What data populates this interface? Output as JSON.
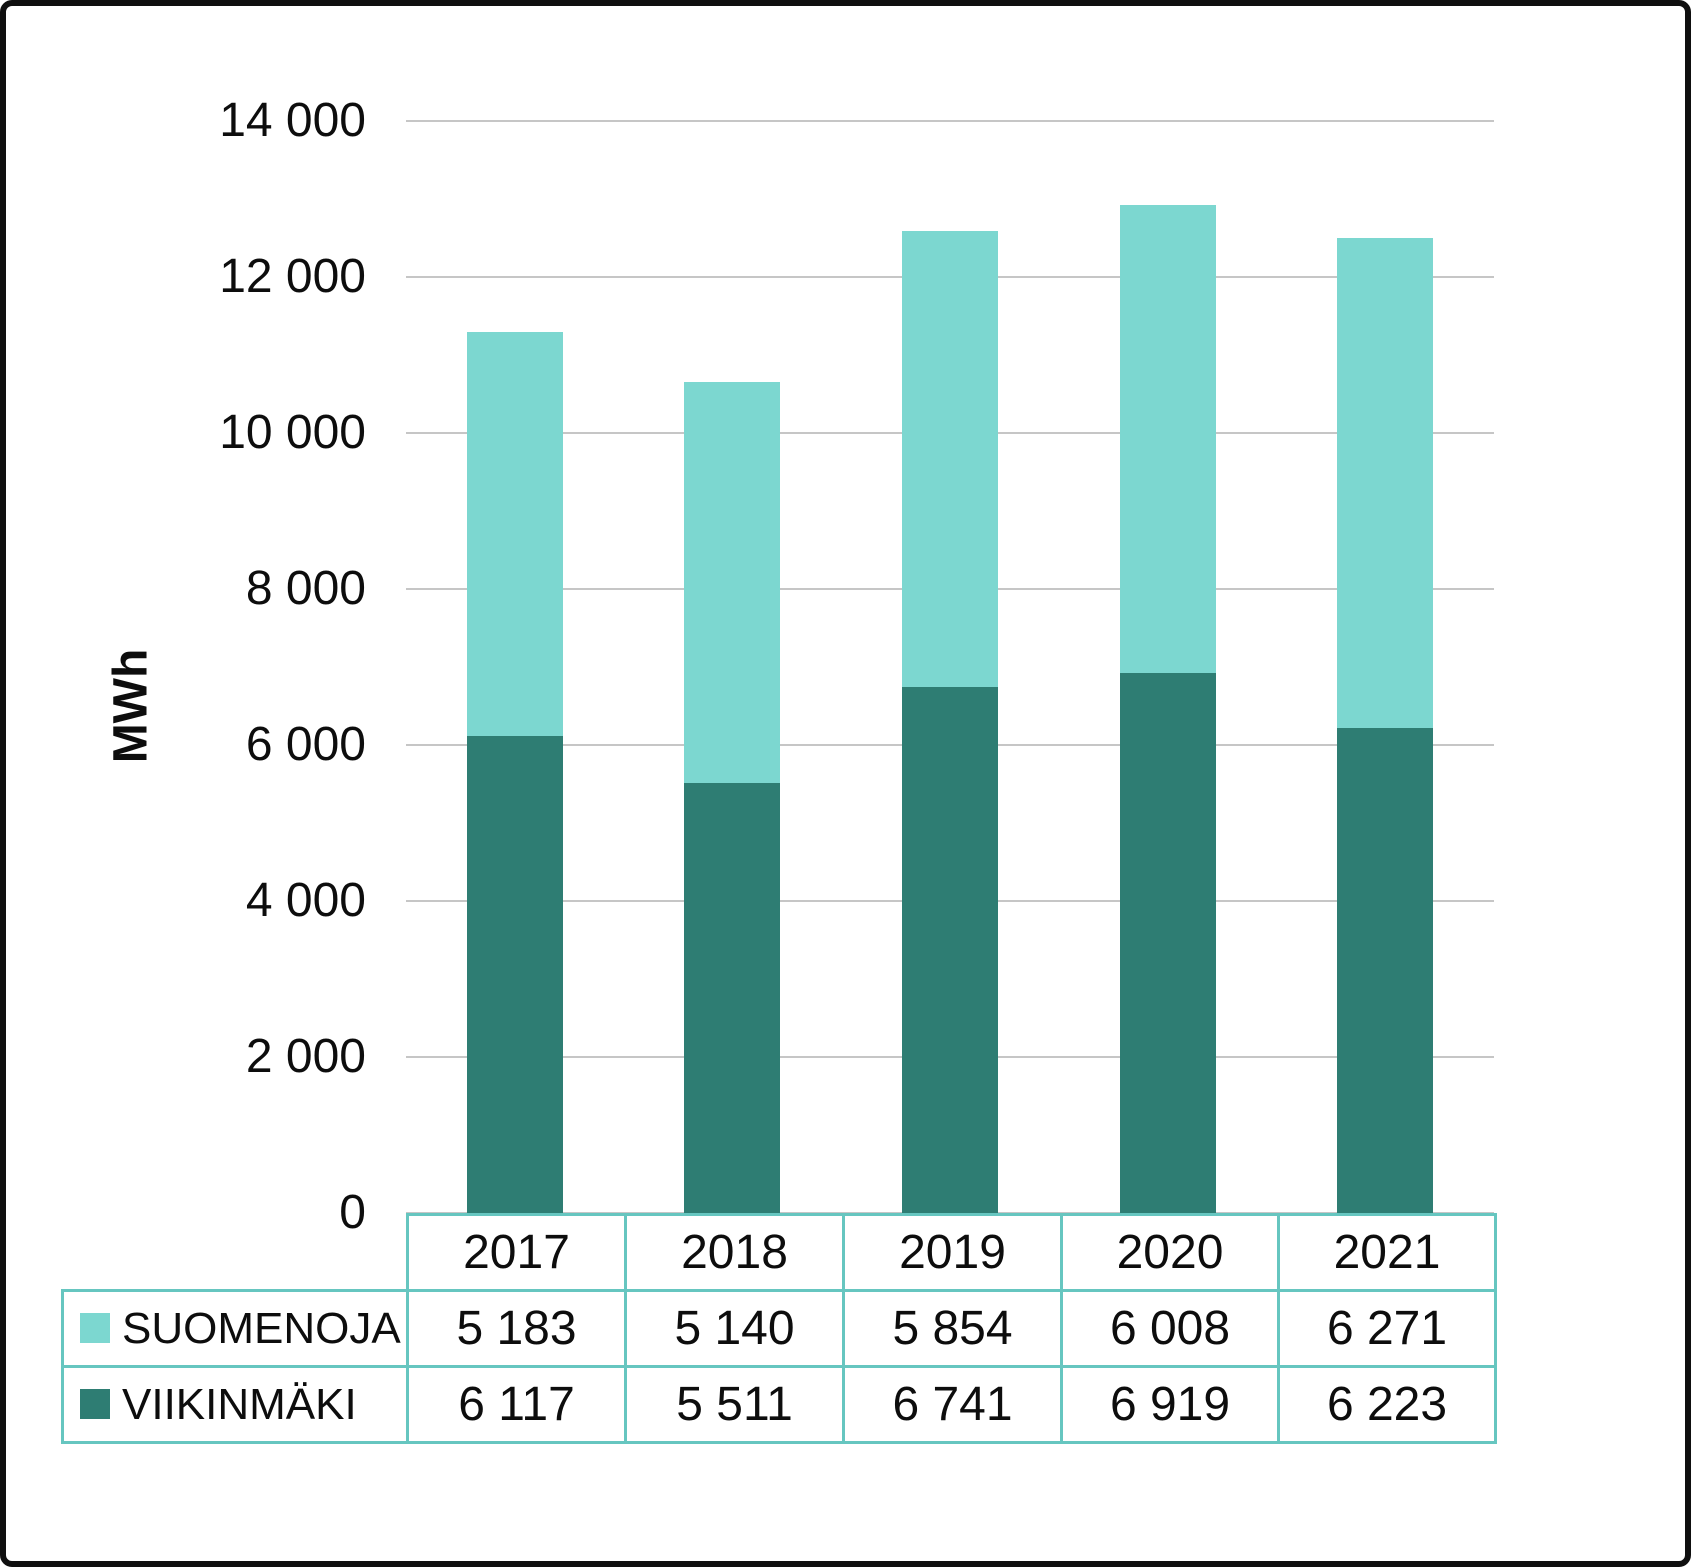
{
  "page": {
    "background": "#FFFFFF",
    "frame_border_color": "#0F0F0F"
  },
  "chart_data": {
    "type": "bar",
    "stacked": true,
    "title": "",
    "xlabel": "",
    "ylabel": "MWh",
    "categories": [
      "2017",
      "2018",
      "2019",
      "2020",
      "2021"
    ],
    "series": [
      {
        "key": "suomenoja",
        "name": "SUOMENOJA",
        "color": "#7CD7D0",
        "values": [
          5183,
          5140,
          5854,
          6008,
          6271
        ],
        "labels": [
          "5 183",
          "5 140",
          "5 854",
          "6 008",
          "6 271"
        ]
      },
      {
        "key": "viikinmaki",
        "name": "VIIKINMÄKI",
        "color": "#2E7D73",
        "values": [
          6117,
          5511,
          6741,
          6919,
          6223
        ],
        "labels": [
          "6 117",
          "5 511",
          "6 741",
          "6 919",
          "6 223"
        ]
      }
    ],
    "stack_bottom_to_top": [
      "viikinmaki",
      "suomenoja"
    ],
    "ylim": [
      0,
      14000
    ],
    "yticks": [
      0,
      2000,
      4000,
      6000,
      8000,
      10000,
      12000,
      14000
    ],
    "ytick_labels": [
      "0",
      "2 000",
      "4 000",
      "6 000",
      "8 000",
      "10 000",
      "12 000",
      "14 000"
    ],
    "grid": true,
    "gridline_color": "#C6C6C6",
    "legend_position": "data-table-left",
    "data_table": {
      "border_color": "#66C6C0"
    }
  }
}
